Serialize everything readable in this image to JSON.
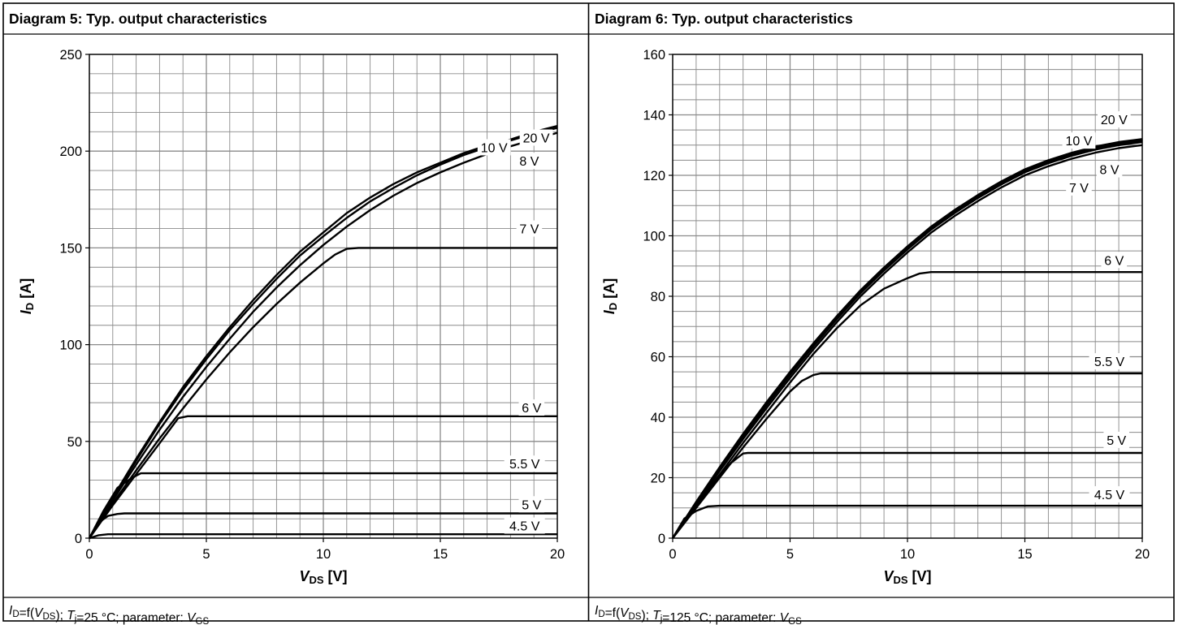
{
  "chart_data": [
    {
      "type": "line",
      "title": "Diagram 5: Typ. output characteristics",
      "xlabel": {
        "main": "V",
        "sub": "DS",
        "unit": " [V]"
      },
      "ylabel": {
        "main": "I",
        "sub": "D",
        "unit": " [A]"
      },
      "xlim": [
        0,
        20
      ],
      "ylim": [
        0,
        250
      ],
      "x_ticks": [
        "0",
        "5",
        "10",
        "15",
        "20"
      ],
      "y_ticks": [
        "0",
        "50",
        "100",
        "150",
        "200",
        "250"
      ],
      "grid": true,
      "caption": [
        {
          "t": "I",
          "s": "italic"
        },
        {
          "t": "D",
          "s": "sub"
        },
        {
          "t": "=f("
        },
        {
          "t": "V",
          "s": "italic"
        },
        {
          "t": "DS",
          "s": "sub"
        },
        {
          "t": "); "
        },
        {
          "t": "T",
          "s": "italic"
        },
        {
          "t": "j",
          "s": "sub"
        },
        {
          "t": "=25 °C; parameter: "
        },
        {
          "t": "V",
          "s": "italic"
        },
        {
          "t": "GS",
          "s": "sub"
        }
      ],
      "series": [
        {
          "name": "20 V",
          "label_at": [
            19.1,
            207
          ],
          "points": [
            [
              0,
              0
            ],
            [
              1,
              21
            ],
            [
              2,
              41
            ],
            [
              3,
              60
            ],
            [
              4,
              78
            ],
            [
              5,
              94
            ],
            [
              6,
              109
            ],
            [
              7,
              123
            ],
            [
              8,
              136
            ],
            [
              9,
              148
            ],
            [
              10,
              158
            ],
            [
              11,
              168
            ],
            [
              12,
              176
            ],
            [
              13,
              183
            ],
            [
              14,
              189
            ],
            [
              15,
              194
            ],
            [
              16,
              199
            ],
            [
              17,
              203
            ],
            [
              18,
              206
            ],
            [
              19,
              210
            ],
            [
              20,
              213
            ]
          ]
        },
        {
          "name": "10 V",
          "label_at": [
            17.3,
            202
          ],
          "points": [
            [
              0,
              0
            ],
            [
              1,
              20.5
            ],
            [
              2,
              40
            ],
            [
              3,
              59
            ],
            [
              4,
              76.5
            ],
            [
              5,
              92.5
            ],
            [
              6,
              107.5
            ],
            [
              7,
              121
            ],
            [
              8,
              134
            ],
            [
              9,
              146
            ],
            [
              10,
              156
            ],
            [
              11,
              165.5
            ],
            [
              12,
              174
            ],
            [
              13,
              181
            ],
            [
              14,
              187.5
            ],
            [
              15,
              193
            ],
            [
              16,
              198
            ],
            [
              17,
              202
            ],
            [
              18,
              205.5
            ],
            [
              19,
              209
            ],
            [
              20,
              212
            ]
          ]
        },
        {
          "name": "8 V",
          "label_at": [
            18.8,
            195
          ],
          "points": [
            [
              0,
              0
            ],
            [
              1,
              19.5
            ],
            [
              2,
              38
            ],
            [
              3,
              56
            ],
            [
              4,
              73
            ],
            [
              5,
              88.5
            ],
            [
              6,
              103
            ],
            [
              7,
              117
            ],
            [
              8,
              129.5
            ],
            [
              9,
              141
            ],
            [
              10,
              151.5
            ],
            [
              11,
              161
            ],
            [
              12,
              169.5
            ],
            [
              13,
              177
            ],
            [
              14,
              183.5
            ],
            [
              15,
              189
            ],
            [
              16,
              194
            ],
            [
              17,
              198.5
            ],
            [
              18,
              202.5
            ],
            [
              19,
              206
            ],
            [
              20,
              209.5
            ]
          ]
        },
        {
          "name": "7 V",
          "label_at": [
            18.8,
            160
          ],
          "points": [
            [
              0,
              0
            ],
            [
              1,
              18
            ],
            [
              2,
              35
            ],
            [
              3,
              51.5
            ],
            [
              4,
              67
            ],
            [
              5,
              82
            ],
            [
              6,
              96
            ],
            [
              7,
              109
            ],
            [
              8,
              121
            ],
            [
              9,
              132
            ],
            [
              10,
              142
            ],
            [
              10.5,
              146.5
            ],
            [
              11,
              149.5
            ],
            [
              11.5,
              150
            ],
            [
              20,
              150
            ]
          ]
        },
        {
          "name": "6 V",
          "label_at": [
            18.9,
            67.5
          ],
          "points": [
            [
              0,
              0
            ],
            [
              1,
              17
            ],
            [
              2,
              33
            ],
            [
              3,
              49
            ],
            [
              3.8,
              62
            ],
            [
              4.2,
              63
            ],
            [
              20,
              63
            ]
          ]
        },
        {
          "name": "5.5 V",
          "label_at": [
            18.6,
            38.5
          ],
          "points": [
            [
              0,
              0
            ],
            [
              0.6,
              14
            ],
            [
              1.2,
              26
            ],
            [
              1.8,
              31
            ],
            [
              2.2,
              33.5
            ],
            [
              20,
              33.5
            ]
          ]
        },
        {
          "name": "5 V",
          "label_at": [
            18.9,
            17.5
          ],
          "points": [
            [
              0,
              0
            ],
            [
              0.4,
              8
            ],
            [
              0.8,
              11.5
            ],
            [
              1.2,
              12.5
            ],
            [
              1.5,
              12.8
            ],
            [
              20,
              12.8
            ]
          ]
        },
        {
          "name": "4.5 V",
          "label_at": [
            18.6,
            6.5
          ],
          "points": [
            [
              0,
              0
            ],
            [
              0.4,
              1.5
            ],
            [
              0.8,
              2
            ],
            [
              20,
              2
            ]
          ]
        }
      ]
    },
    {
      "type": "line",
      "title": "Diagram 6: Typ. output characteristics",
      "xlabel": {
        "main": "V",
        "sub": "DS",
        "unit": " [V]"
      },
      "ylabel": {
        "main": "I",
        "sub": "D",
        "unit": " [A]"
      },
      "xlim": [
        0,
        20
      ],
      "ylim": [
        0,
        160
      ],
      "x_ticks": [
        "0",
        "5",
        "10",
        "15",
        "20"
      ],
      "y_ticks": [
        "0",
        "20",
        "40",
        "60",
        "80",
        "100",
        "120",
        "140",
        "160"
      ],
      "grid": true,
      "caption": [
        {
          "t": "I",
          "s": "italic"
        },
        {
          "t": "D",
          "s": "sub"
        },
        {
          "t": "=f("
        },
        {
          "t": "V",
          "s": "italic"
        },
        {
          "t": "DS",
          "s": "sub"
        },
        {
          "t": "); "
        },
        {
          "t": "T",
          "s": "italic"
        },
        {
          "t": "j",
          "s": "sub"
        },
        {
          "t": "=125 °C; parameter: "
        },
        {
          "t": "V",
          "s": "italic"
        },
        {
          "t": "GS",
          "s": "sub"
        }
      ],
      "series": [
        {
          "name": "20 V",
          "label_at": [
            18.8,
            138.5
          ],
          "points": [
            [
              0,
              0
            ],
            [
              1,
              12
            ],
            [
              2,
              23.5
            ],
            [
              3,
              34.5
            ],
            [
              4,
              45
            ],
            [
              5,
              55
            ],
            [
              6,
              64.5
            ],
            [
              7,
              73.5
            ],
            [
              8,
              82
            ],
            [
              9,
              89.5
            ],
            [
              10,
              96.5
            ],
            [
              11,
              103
            ],
            [
              12,
              108.5
            ],
            [
              13,
              113.5
            ],
            [
              14,
              118
            ],
            [
              15,
              122
            ],
            [
              16,
              125
            ],
            [
              17,
              127.5
            ],
            [
              18,
              129.5
            ],
            [
              19,
              131
            ],
            [
              20,
              132
            ]
          ]
        },
        {
          "name": "10 V",
          "label_at": [
            17.3,
            131.5
          ],
          "points": [
            [
              0,
              0
            ],
            [
              1,
              11.8
            ],
            [
              2,
              23.2
            ],
            [
              3,
              34
            ],
            [
              4,
              44.5
            ],
            [
              5,
              54.5
            ],
            [
              6,
              64
            ],
            [
              7,
              73
            ],
            [
              8,
              81.5
            ],
            [
              9,
              89
            ],
            [
              10,
              96
            ],
            [
              11,
              102.5
            ],
            [
              12,
              108
            ],
            [
              13,
              113
            ],
            [
              14,
              117.5
            ],
            [
              15,
              121.5
            ],
            [
              16,
              124.5
            ],
            [
              17,
              127
            ],
            [
              18,
              129
            ],
            [
              19,
              130.5
            ],
            [
              20,
              131.5
            ]
          ]
        },
        {
          "name": "8 V",
          "label_at": [
            18.6,
            122
          ],
          "points": [
            [
              0,
              0
            ],
            [
              1,
              11.5
            ],
            [
              2,
              22.8
            ],
            [
              3,
              33.5
            ],
            [
              4,
              44
            ],
            [
              5,
              54
            ],
            [
              6,
              63.5
            ],
            [
              7,
              72.5
            ],
            [
              8,
              81
            ],
            [
              9,
              88.5
            ],
            [
              10,
              95.5
            ],
            [
              11,
              102
            ],
            [
              12,
              107.5
            ],
            [
              13,
              112.5
            ],
            [
              14,
              117
            ],
            [
              15,
              121
            ],
            [
              16,
              124
            ],
            [
              17,
              126.5
            ],
            [
              18,
              128.5
            ],
            [
              19,
              130
            ],
            [
              20,
              131
            ]
          ]
        },
        {
          "name": "7 V",
          "label_at": [
            17.3,
            116
          ],
          "points": [
            [
              0,
              0
            ],
            [
              1,
              11.2
            ],
            [
              2,
              22.2
            ],
            [
              3,
              32.8
            ],
            [
              4,
              43
            ],
            [
              5,
              53
            ],
            [
              6,
              62.5
            ],
            [
              7,
              71.5
            ],
            [
              8,
              80
            ],
            [
              9,
              87.5
            ],
            [
              10,
              94.5
            ],
            [
              11,
              101
            ],
            [
              12,
              106.5
            ],
            [
              13,
              111.5
            ],
            [
              14,
              116
            ],
            [
              15,
              120
            ],
            [
              16,
              123
            ],
            [
              17,
              125.5
            ],
            [
              18,
              127.5
            ],
            [
              19,
              129
            ],
            [
              20,
              130
            ]
          ]
        },
        {
          "name": "6 V",
          "label_at": [
            18.8,
            92
          ],
          "points": [
            [
              0,
              0
            ],
            [
              1,
              10.5
            ],
            [
              2,
              21
            ],
            [
              3,
              31.5
            ],
            [
              4,
              41.5
            ],
            [
              5,
              51.5
            ],
            [
              6,
              61
            ],
            [
              7,
              69.5
            ],
            [
              8,
              77
            ],
            [
              9,
              82.5
            ],
            [
              10,
              86
            ],
            [
              10.5,
              87.5
            ],
            [
              11,
              88
            ],
            [
              20,
              88
            ]
          ]
        },
        {
          "name": "5.5 V",
          "label_at": [
            18.6,
            58.5
          ],
          "points": [
            [
              0,
              0
            ],
            [
              1,
              10
            ],
            [
              2,
              20
            ],
            [
              3,
              30
            ],
            [
              4,
              39.5
            ],
            [
              5,
              48.5
            ],
            [
              5.5,
              52
            ],
            [
              6,
              54
            ],
            [
              6.3,
              54.5
            ],
            [
              20,
              54.5
            ]
          ]
        },
        {
          "name": "5 V",
          "label_at": [
            18.9,
            32.5
          ],
          "points": [
            [
              0,
              0
            ],
            [
              0.5,
              6
            ],
            [
              1,
              11
            ],
            [
              1.5,
              16
            ],
            [
              2,
              21
            ],
            [
              2.5,
              25
            ],
            [
              3,
              28
            ],
            [
              3.2,
              28.2
            ],
            [
              20,
              28.2
            ]
          ]
        },
        {
          "name": "4.5 V",
          "label_at": [
            18.6,
            14.5
          ],
          "points": [
            [
              0,
              0
            ],
            [
              0.5,
              6.5
            ],
            [
              1,
              9
            ],
            [
              1.5,
              10.5
            ],
            [
              2,
              10.7
            ],
            [
              20,
              10.7
            ]
          ]
        }
      ]
    }
  ]
}
